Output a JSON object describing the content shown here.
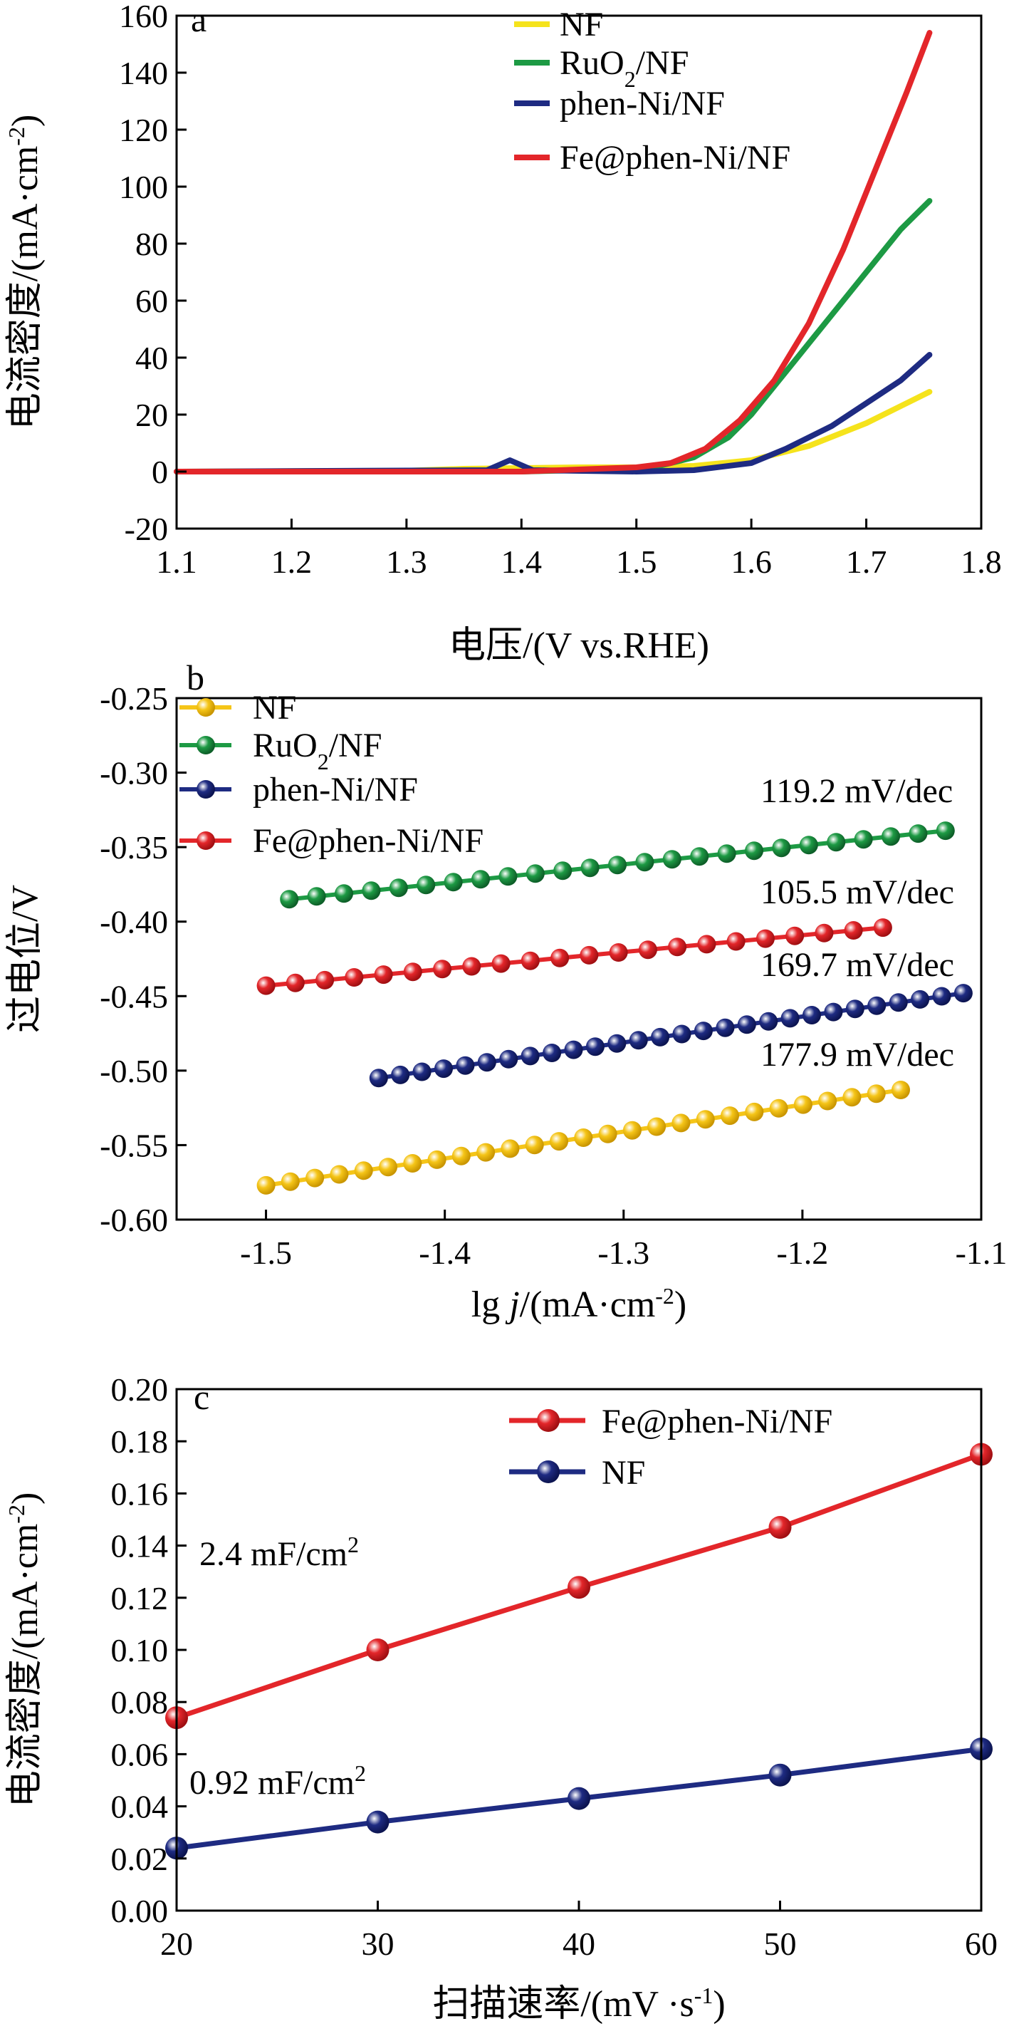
{
  "chart_data": [
    {
      "panel": "a",
      "type": "line",
      "xlabel": "电压/(V vs.RHE)",
      "ylabel": "电流密度/(mA·cm-2)",
      "xlim": [
        1.1,
        1.8
      ],
      "ylim": [
        -20,
        160
      ],
      "xticks": [
        1.1,
        1.2,
        1.3,
        1.4,
        1.5,
        1.6,
        1.7,
        1.8
      ],
      "yticks": [
        -20,
        0,
        20,
        40,
        60,
        80,
        100,
        120,
        140,
        160
      ],
      "xtick_labels": [
        "1.1",
        "1.2",
        "1.3",
        "1.4",
        "1.5",
        "1.6",
        "1.7",
        "1.8"
      ],
      "ytick_labels": [
        "-20",
        "0",
        "20",
        "40",
        "60",
        "80",
        "100",
        "120",
        "140",
        "160"
      ],
      "legend_position": "top-right",
      "grid": false,
      "series": [
        {
          "name": "NF",
          "color": "#f5e31c",
          "x": [
            1.1,
            1.3,
            1.35,
            1.45,
            1.5,
            1.55,
            1.6,
            1.65,
            1.7,
            1.755
          ],
          "y": [
            0,
            0.3,
            1.0,
            1.5,
            1.5,
            2,
            4,
            9,
            17,
            28
          ]
        },
        {
          "name": "RuO2/NF",
          "color": "#1d9a44",
          "x": [
            1.1,
            1.4,
            1.5,
            1.52,
            1.55,
            1.58,
            1.6,
            1.63,
            1.66,
            1.7,
            1.73,
            1.755
          ],
          "y": [
            0,
            0,
            1,
            2,
            5,
            12,
            20,
            35,
            50,
            70,
            85,
            95
          ]
        },
        {
          "name": "phen-Ni/NF",
          "color": "#1e2b82",
          "x": [
            1.1,
            1.37,
            1.39,
            1.41,
            1.5,
            1.55,
            1.6,
            1.63,
            1.67,
            1.7,
            1.73,
            1.755
          ],
          "y": [
            0,
            0.5,
            4,
            0.5,
            0,
            0.5,
            3,
            8,
            16,
            24,
            32,
            41
          ]
        },
        {
          "name": "Fe@phen-Ni/NF",
          "color": "#e3262a",
          "x": [
            1.1,
            1.4,
            1.5,
            1.53,
            1.56,
            1.59,
            1.62,
            1.65,
            1.68,
            1.71,
            1.735,
            1.755
          ],
          "y": [
            0,
            0,
            1.5,
            3,
            8,
            18,
            32,
            52,
            78,
            108,
            133,
            154
          ]
        }
      ]
    },
    {
      "panel": "b",
      "type": "scatter",
      "xlabel_parts": [
        "lg ",
        "j",
        "/(mA·cm-2)"
      ],
      "ylabel": "过电位/V",
      "xlim": [
        -1.55,
        -1.1
      ],
      "ylim": [
        -0.6,
        -0.25
      ],
      "xticks": [
        -1.5,
        -1.4,
        -1.3,
        -1.2,
        -1.1
      ],
      "yticks": [
        -0.6,
        -0.55,
        -0.5,
        -0.45,
        -0.4,
        -0.35,
        -0.3,
        -0.25
      ],
      "xtick_labels": [
        "-1.5",
        "-1.4",
        "-1.3",
        "-1.2",
        "-1.1"
      ],
      "ytick_labels": [
        "-0.60",
        "-0.55",
        "-0.50",
        "-0.45",
        "-0.40",
        "-0.35",
        "-0.30",
        "-0.25"
      ],
      "legend_position": "top-left",
      "series": [
        {
          "name": "NF",
          "color": "#f5c518",
          "x_start": -1.5,
          "x_end": -1.145,
          "y_start": -0.577,
          "y_end": -0.513,
          "points": 27
        },
        {
          "name": "RuO2/NF",
          "color": "#1d9a44",
          "x_start": -1.487,
          "x_end": -1.12,
          "y_start": -0.385,
          "y_end": -0.339,
          "points": 25
        },
        {
          "name": "phen-Ni/NF",
          "color": "#1e2b82",
          "x_start": -1.437,
          "x_end": -1.11,
          "y_start": -0.505,
          "y_end": -0.448,
          "points": 28
        },
        {
          "name": "Fe@phen-Ni/NF",
          "color": "#e3262a",
          "x_start": -1.5,
          "x_end": -1.155,
          "y_start": -0.443,
          "y_end": -0.404,
          "points": 22
        }
      ],
      "annotations": [
        "119.2 mV/dec",
        "105.5 mV/dec",
        "169.7 mV/dec",
        "177.9 mV/dec"
      ]
    },
    {
      "panel": "c",
      "type": "line",
      "xlabel": "扫描速率/(mV ·s-1)",
      "ylabel": "电流密度/(mA·cm-2)",
      "xlim": [
        20,
        60
      ],
      "ylim": [
        0,
        0.2
      ],
      "xticks": [
        20,
        30,
        40,
        50,
        60
      ],
      "yticks": [
        0,
        0.02,
        0.04,
        0.06,
        0.08,
        0.1,
        0.12,
        0.14,
        0.16,
        0.18,
        0.2
      ],
      "xtick_labels": [
        "20",
        "30",
        "40",
        "50",
        "60"
      ],
      "ytick_labels": [
        "0.00",
        "0.02",
        "0.04",
        "0.06",
        "0.08",
        "0.10",
        "0.12",
        "0.14",
        "0.16",
        "0.18",
        "0.20"
      ],
      "legend_position": "top-right",
      "series": [
        {
          "name": "Fe@phen-Ni/NF",
          "color": "#e3262a",
          "x": [
            20,
            30,
            40,
            50,
            60
          ],
          "y": [
            0.074,
            0.1,
            0.124,
            0.147,
            0.175
          ]
        },
        {
          "name": "NF",
          "color": "#1e2b82",
          "x": [
            20,
            30,
            40,
            50,
            60
          ],
          "y": [
            0.024,
            0.034,
            0.043,
            0.052,
            0.062
          ]
        }
      ],
      "annotations": [
        "2.4 mF/cm2",
        "0.92 mF/cm2"
      ]
    }
  ]
}
